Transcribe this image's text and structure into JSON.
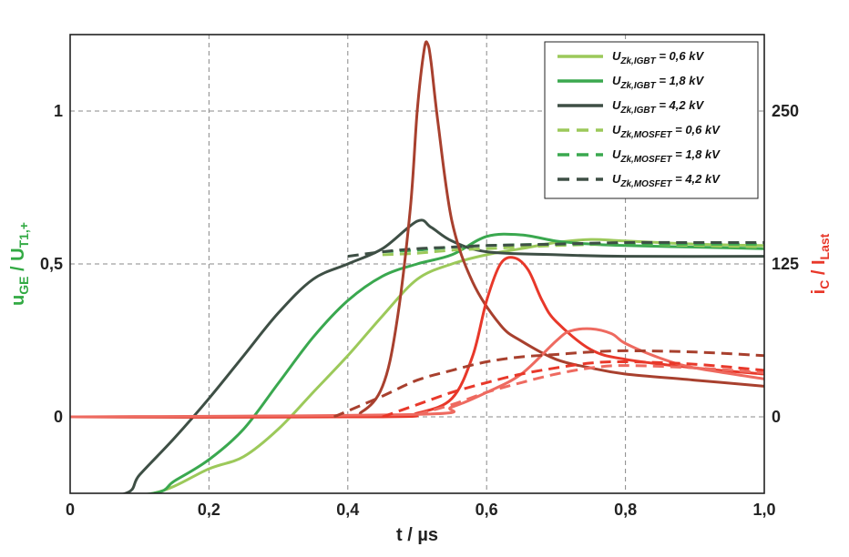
{
  "chart_data": {
    "type": "line",
    "xlabel": "t / µs",
    "ylabel_left_main": "u",
    "ylabel_left_sub": "GE",
    "ylabel_left_sep": " / U",
    "ylabel_left_sub2": "T1,+",
    "ylabel_right_main": "i",
    "ylabel_right_sub": "C",
    "ylabel_right_sep": " / I",
    "ylabel_right_sub2": "Last",
    "xlim": [
      0,
      1.0
    ],
    "ylim_left": [
      -0.25,
      1.25
    ],
    "ylim_right": [
      -62.5,
      312.5
    ],
    "xticks": [
      0,
      0.2,
      0.4,
      0.6,
      0.8,
      1.0
    ],
    "xtick_labels": [
      "0",
      "0,2",
      "0,4",
      "0,6",
      "0,8",
      "1,0"
    ],
    "yticks_left": [
      0,
      0.5,
      1
    ],
    "ytick_labels_left": [
      "0",
      "0,5",
      "1"
    ],
    "yticks_right": [
      0,
      125,
      250
    ],
    "ytick_labels_right": [
      "0",
      "125",
      "250"
    ],
    "grid": true,
    "legend_position": "top-right",
    "colors": {
      "light_green": "#9cc95a",
      "mid_green": "#3aa84f",
      "dark_gray": "#3e4f45",
      "light_red": "#ee6a60",
      "mid_red": "#e8382a",
      "dark_red": "#a8402e",
      "left_axis_label": "#33aa44",
      "right_axis_label": "#e8382a"
    },
    "legend": [
      {
        "prefix": "U",
        "sub": "Zk,IGBT",
        "suffix": " = 0,6 kV",
        "color": "#9cc95a",
        "dashed": false
      },
      {
        "prefix": "U",
        "sub": "Zk,IGBT",
        "suffix": " = 1,8 kV",
        "color": "#3aa84f",
        "dashed": false
      },
      {
        "prefix": "U",
        "sub": "Zk,IGBT",
        "suffix": " = 4,2 kV",
        "color": "#3e4f45",
        "dashed": false
      },
      {
        "prefix": "U",
        "sub": "Zk,MOSFET",
        "suffix": " = 0,6 kV",
        "color": "#9cc95a",
        "dashed": true
      },
      {
        "prefix": "U",
        "sub": "Zk,MOSFET",
        "suffix": " = 1,8 kV",
        "color": "#3aa84f",
        "dashed": true
      },
      {
        "prefix": "U",
        "sub": "Zk,MOSFET",
        "suffix": " = 4,2 kV",
        "color": "#3e4f45",
        "dashed": true
      }
    ],
    "series": [
      {
        "axis": "left",
        "color": "#9cc95a",
        "dashed": false,
        "x": [
          0,
          0.12,
          0.2,
          0.25,
          0.3,
          0.35,
          0.4,
          0.45,
          0.5,
          0.55,
          0.6,
          0.65,
          0.7,
          0.75,
          0.8,
          0.9,
          1.0
        ],
        "y": [
          -0.27,
          -0.25,
          -0.17,
          -0.13,
          -0.04,
          0.08,
          0.2,
          0.33,
          0.45,
          0.5,
          0.53,
          0.55,
          0.57,
          0.58,
          0.575,
          0.565,
          0.56
        ]
      },
      {
        "axis": "left",
        "color": "#3aa84f",
        "dashed": false,
        "x": [
          0,
          0.12,
          0.15,
          0.2,
          0.25,
          0.3,
          0.35,
          0.4,
          0.45,
          0.5,
          0.55,
          0.6,
          0.65,
          0.7,
          0.75,
          0.8,
          0.9,
          1.0
        ],
        "y": [
          -0.27,
          -0.25,
          -0.21,
          -0.14,
          -0.04,
          0.11,
          0.26,
          0.38,
          0.46,
          0.5,
          0.53,
          0.59,
          0.595,
          0.575,
          0.565,
          0.56,
          0.555,
          0.55
        ]
      },
      {
        "axis": "left",
        "color": "#3e4f45",
        "dashed": false,
        "x": [
          0,
          0.08,
          0.1,
          0.15,
          0.2,
          0.25,
          0.3,
          0.35,
          0.4,
          0.45,
          0.5,
          0.52,
          0.55,
          0.6,
          0.7,
          0.8,
          1.0
        ],
        "y": [
          -0.27,
          -0.25,
          -0.19,
          -0.07,
          0.06,
          0.2,
          0.34,
          0.45,
          0.5,
          0.55,
          0.64,
          0.62,
          0.575,
          0.54,
          0.53,
          0.525,
          0.525
        ]
      },
      {
        "axis": "left",
        "color": "#9cc95a",
        "dashed": true,
        "x": [
          0.45,
          0.5,
          0.55,
          0.6,
          0.7,
          0.8,
          0.9,
          1.0
        ],
        "y": [
          0.53,
          0.535,
          0.545,
          0.55,
          0.56,
          0.565,
          0.56,
          0.555
        ]
      },
      {
        "axis": "left",
        "color": "#3aa84f",
        "dashed": true,
        "x": [
          0.45,
          0.5,
          0.55,
          0.6,
          0.7,
          0.8,
          0.9,
          1.0
        ],
        "y": [
          0.54,
          0.545,
          0.555,
          0.56,
          0.565,
          0.565,
          0.565,
          0.565
        ]
      },
      {
        "axis": "left",
        "color": "#3e4f45",
        "dashed": true,
        "x": [
          0.4,
          0.45,
          0.5,
          0.55,
          0.6,
          0.7,
          0.8,
          0.9,
          1.0
        ],
        "y": [
          0.525,
          0.54,
          0.55,
          0.555,
          0.56,
          0.565,
          0.57,
          0.57,
          0.57
        ]
      },
      {
        "axis": "right",
        "color": "#a8402e",
        "dashed": false,
        "x": [
          0,
          0.38,
          0.42,
          0.45,
          0.47,
          0.49,
          0.5,
          0.51,
          0.515,
          0.52,
          0.53,
          0.55,
          0.58,
          0.62,
          0.65,
          0.7,
          0.75,
          0.8,
          0.9,
          1.0
        ],
        "y": [
          0,
          0,
          4,
          25,
          75,
          170,
          250,
          300,
          305,
          290,
          240,
          160,
          110,
          75,
          62,
          47,
          40,
          35,
          30,
          25
        ]
      },
      {
        "axis": "right",
        "color": "#e8382a",
        "dashed": false,
        "x": [
          0,
          0.45,
          0.5,
          0.55,
          0.58,
          0.6,
          0.62,
          0.64,
          0.66,
          0.68,
          0.7,
          0.75,
          0.8,
          0.9,
          1.0
        ],
        "y": [
          0,
          0,
          3,
          15,
          50,
          95,
          125,
          130,
          120,
          95,
          78,
          55,
          47,
          40,
          35
        ]
      },
      {
        "axis": "right",
        "color": "#ee6a60",
        "dashed": false,
        "x": [
          0,
          0.5,
          0.55,
          0.6,
          0.65,
          0.7,
          0.72,
          0.75,
          0.78,
          0.8,
          0.85,
          0.9,
          1.0
        ],
        "y": [
          0,
          2,
          8,
          20,
          35,
          62,
          70,
          72,
          68,
          60,
          48,
          40,
          31
        ]
      },
      {
        "axis": "right",
        "color": "#a8402e",
        "dashed": true,
        "x": [
          0.38,
          0.45,
          0.5,
          0.55,
          0.6,
          0.65,
          0.7,
          0.75,
          0.8,
          0.9,
          1.0
        ],
        "y": [
          0,
          17,
          30,
          38,
          45,
          49,
          51,
          53,
          54,
          53,
          50
        ]
      },
      {
        "axis": "right",
        "color": "#e8382a",
        "dashed": true,
        "x": [
          0.45,
          0.5,
          0.55,
          0.6,
          0.65,
          0.7,
          0.75,
          0.8,
          0.9,
          1.0
        ],
        "y": [
          0,
          10,
          20,
          28,
          35,
          40,
          44,
          45,
          43,
          38
        ]
      },
      {
        "axis": "right",
        "color": "#ee6a60",
        "dashed": true,
        "x": [
          0.5,
          0.55,
          0.6,
          0.65,
          0.7,
          0.75,
          0.8,
          0.9,
          1.0
        ],
        "y": [
          2,
          10,
          20,
          28,
          35,
          40,
          42,
          40,
          36
        ]
      }
    ]
  }
}
